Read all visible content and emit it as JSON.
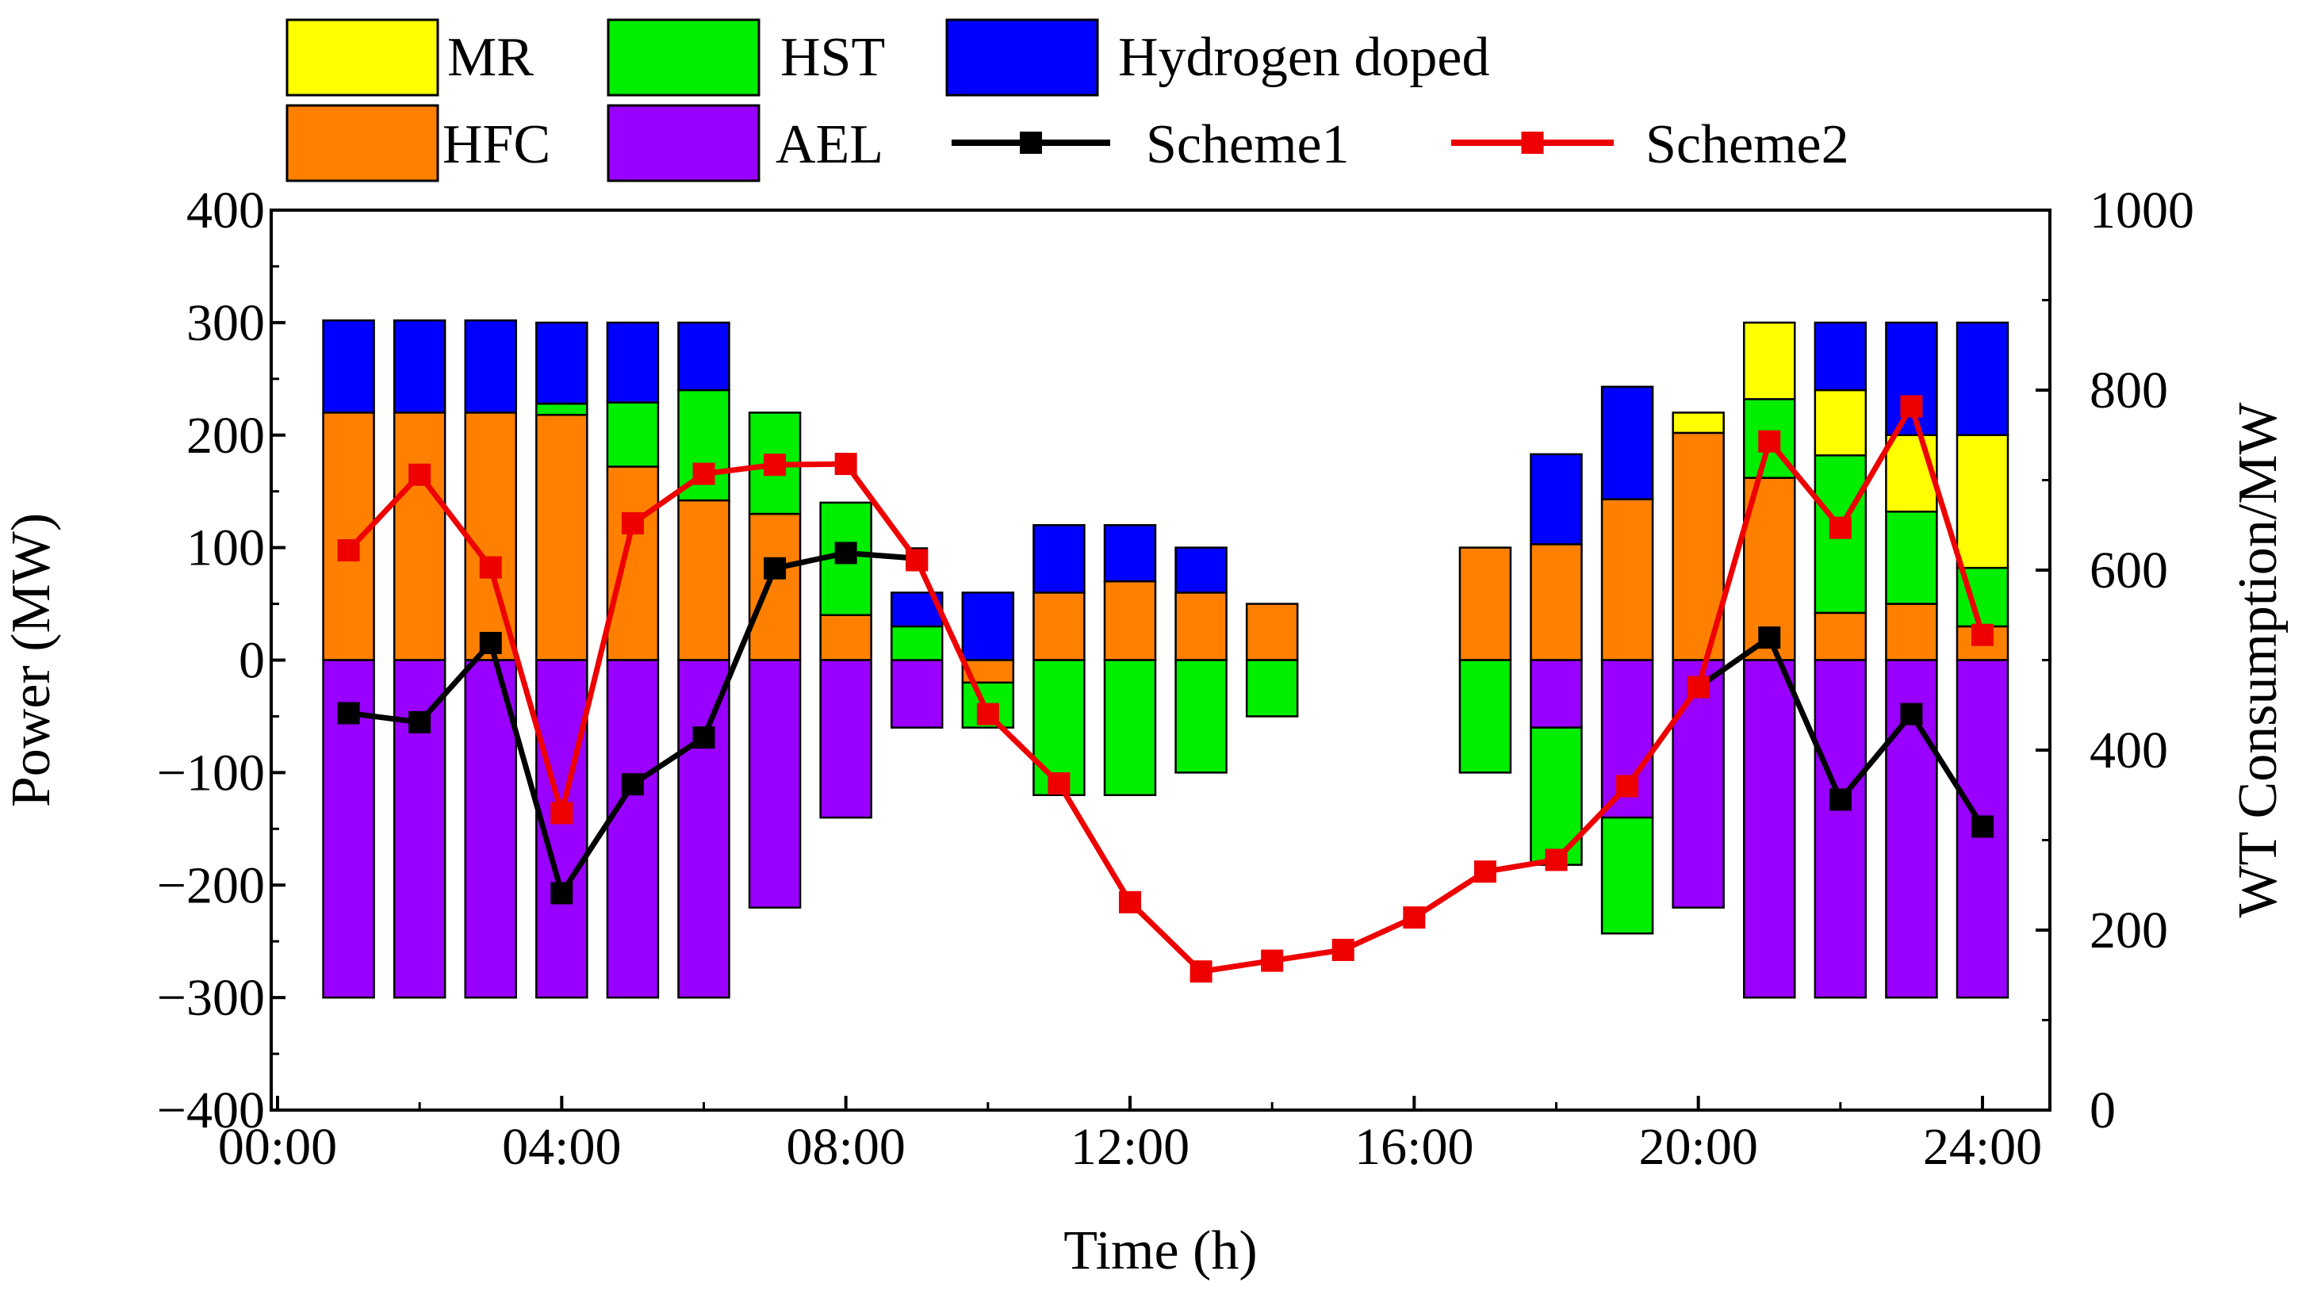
{
  "chart_data": {
    "type": "bar",
    "xlabel": "Time (h)",
    "ylabel": "Power (MW)",
    "y2label": "WT Consumption/MW",
    "ylim": [
      -400,
      400
    ],
    "y2lim": [
      0,
      1000
    ],
    "xlim": [
      0,
      25
    ],
    "xticks": [
      0,
      4,
      8,
      12,
      16,
      20,
      24
    ],
    "xtick_labels": [
      "00:00",
      "04:00",
      "08:00",
      "12:00",
      "16:00",
      "20:00",
      "24:00"
    ],
    "yticks": [
      400,
      300,
      200,
      100,
      0,
      -100,
      -200,
      -300,
      -400
    ],
    "ytick_labels": [
      "400",
      "300",
      "200",
      "100",
      "0",
      "−100",
      "−200",
      "−300",
      "−400"
    ],
    "y2ticks": [
      1000,
      800,
      600,
      400,
      200,
      0
    ],
    "y2tick_labels": [
      "1000",
      "800",
      "600",
      "400",
      "200",
      "0"
    ],
    "hours": [
      1,
      2,
      3,
      4,
      5,
      6,
      7,
      8,
      9,
      10,
      11,
      12,
      13,
      14,
      15,
      16,
      17,
      18,
      19,
      20,
      21,
      22,
      23,
      24
    ],
    "bar_series": [
      {
        "key": "HFC",
        "name": "HFC",
        "color": "#ff8000",
        "values": [
          220,
          220,
          220,
          218,
          172,
          142,
          130,
          40,
          0,
          -20,
          60,
          70,
          60,
          50,
          0,
          0,
          100,
          103,
          143,
          202,
          162,
          42,
          50,
          30
        ]
      },
      {
        "key": "AEL",
        "name": "AEL",
        "color": "#9900ff",
        "values": [
          -300,
          -300,
          -300,
          -300,
          -300,
          -300,
          -220,
          -140,
          -60,
          0,
          0,
          0,
          0,
          0,
          0,
          0,
          0,
          -60,
          -140,
          -220,
          -300,
          -300,
          -300,
          -300
        ]
      },
      {
        "key": "HST",
        "name": "HST",
        "color": "#00ee00",
        "values": [
          0,
          0,
          0,
          10,
          57,
          98,
          90,
          100,
          30,
          -40,
          -120,
          -120,
          -100,
          -50,
          0,
          0,
          -100,
          -122,
          -103,
          0,
          70,
          140,
          82,
          52
        ]
      },
      {
        "key": "MR",
        "name": "MR",
        "color": "#ffff00",
        "values": [
          0,
          0,
          0,
          0,
          0,
          0,
          0,
          0,
          0,
          0,
          0,
          0,
          0,
          0,
          0,
          0,
          0,
          0,
          0,
          18,
          68,
          58,
          68,
          118
        ]
      },
      {
        "key": "H2",
        "name": "Hydrogen doped",
        "color": "#0000ff",
        "values": [
          82,
          82,
          82,
          72,
          71,
          60,
          0,
          0,
          30,
          60,
          60,
          50,
          40,
          0,
          0,
          0,
          0,
          80,
          100,
          0,
          0,
          60,
          100,
          100
        ]
      }
    ],
    "line_series": [
      {
        "key": "s1",
        "name": "Scheme1",
        "color": "#000000",
        "hours": [
          1,
          2,
          3,
          4,
          5,
          6,
          7,
          8,
          9
        ],
        "values": [
          441,
          431,
          519,
          241,
          362,
          414,
          602,
          619,
          613
        ]
      },
      {
        "key": "s1b",
        "name": "Scheme1",
        "color": "#000000",
        "hours": [
          20,
          21,
          22,
          23,
          24
        ],
        "values": [
          470,
          525,
          345,
          440,
          315
        ]
      },
      {
        "key": "s2",
        "name": "Scheme2",
        "color": "#ee0000",
        "hours": [
          1,
          2,
          3,
          4,
          5,
          6,
          7,
          8,
          9,
          10,
          11,
          12,
          13,
          14,
          15,
          16,
          17,
          18,
          19,
          20,
          21,
          22,
          23,
          24
        ],
        "values": [
          622,
          706,
          603,
          330,
          652,
          707,
          717,
          718,
          611,
          440,
          363,
          231,
          154,
          166,
          178,
          214,
          265,
          278,
          360,
          470,
          743,
          647,
          782,
          528
        ]
      }
    ],
    "legend": {
      "placement": "top",
      "entries": [
        {
          "label": "MR",
          "kind": "patch",
          "color": "#ffff00"
        },
        {
          "label": "HST",
          "kind": "patch",
          "color": "#00ee00"
        },
        {
          "label": "Hydrogen doped",
          "kind": "patch",
          "color": "#0000ff"
        },
        {
          "label": "HFC",
          "kind": "patch",
          "color": "#ff8000"
        },
        {
          "label": "AEL",
          "kind": "patch",
          "color": "#9900ff"
        },
        {
          "label": "Scheme1",
          "kind": "line",
          "color": "#000000"
        },
        {
          "label": "Scheme2",
          "kind": "line",
          "color": "#ee0000"
        }
      ]
    }
  }
}
